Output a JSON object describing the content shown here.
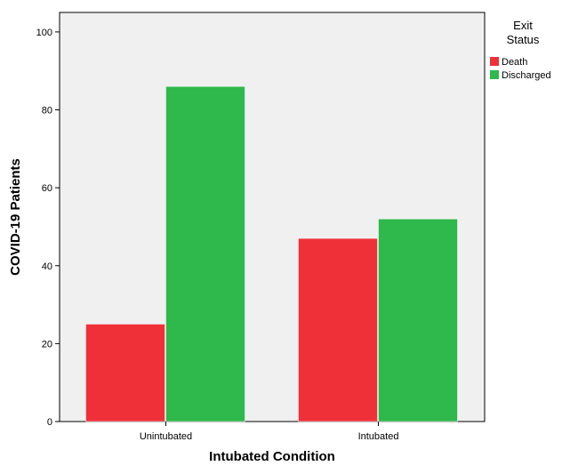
{
  "chart_data": {
    "type": "bar",
    "title": "",
    "xlabel": "Intubated Condition",
    "ylabel": "COVID-19 Patients",
    "categories": [
      "Unintubated",
      "Intubated"
    ],
    "series": [
      {
        "name": "Death",
        "values": [
          25,
          47
        ],
        "color": "#ef3038"
      },
      {
        "name": "Discharged",
        "values": [
          86,
          52
        ],
        "color": "#2fb84b"
      }
    ],
    "ylim": [
      0,
      105
    ],
    "yticks": [
      0,
      20,
      40,
      60,
      80,
      100
    ],
    "grid": false,
    "legend": {
      "title_lines": [
        "Exit",
        "Status"
      ],
      "placement": "top-right, outside plot"
    },
    "plot_background": "#f0f0f0"
  }
}
